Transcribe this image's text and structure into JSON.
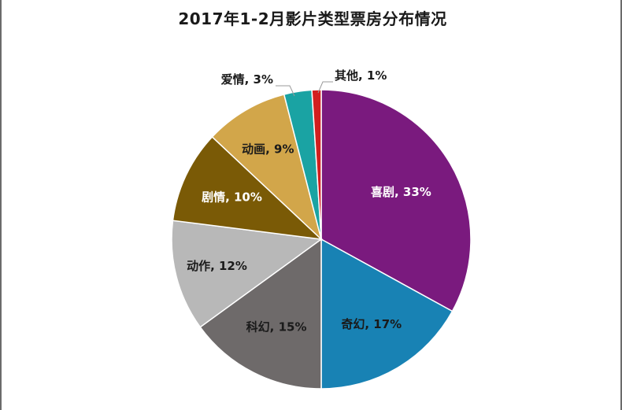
{
  "chart_data": {
    "type": "pie",
    "title": "2017年1-2月影片类型票房分布情况",
    "slices": [
      {
        "label": "喜剧",
        "value": 33,
        "display": "喜剧, 33%",
        "color": "#7a1a7e",
        "text_color": "#ffffff",
        "placement": "inside"
      },
      {
        "label": "奇幻",
        "value": 17,
        "display": "奇幻, 17%",
        "color": "#1882b4",
        "text_color": "#1a1a1a",
        "placement": "inside"
      },
      {
        "label": "科幻",
        "value": 15,
        "display": "科幻, 15%",
        "color": "#6e6a6a",
        "text_color": "#1a1a1a",
        "placement": "inside"
      },
      {
        "label": "动作",
        "value": 12,
        "display": "动作, 12%",
        "color": "#b8b8b8",
        "text_color": "#1a1a1a",
        "placement": "inside"
      },
      {
        "label": "剧情",
        "value": 10,
        "display": "剧情, 10%",
        "color": "#7a5a06",
        "text_color": "#ffffff",
        "placement": "inside"
      },
      {
        "label": "动画",
        "value": 9,
        "display": "动画, 9%",
        "color": "#d2a64a",
        "text_color": "#1a1a1a",
        "placement": "inside"
      },
      {
        "label": "爱情",
        "value": 3,
        "display": "爱情, 3%",
        "color": "#1aa3a3",
        "text_color": "#1a1a1a",
        "placement": "outside"
      },
      {
        "label": "其他",
        "value": 1,
        "display": "其他, 1%",
        "color": "#d21f1f",
        "text_color": "#1a1a1a",
        "placement": "outside"
      }
    ],
    "start_angle": "12 o'clock",
    "direction": "clockwise",
    "legend": "none"
  }
}
